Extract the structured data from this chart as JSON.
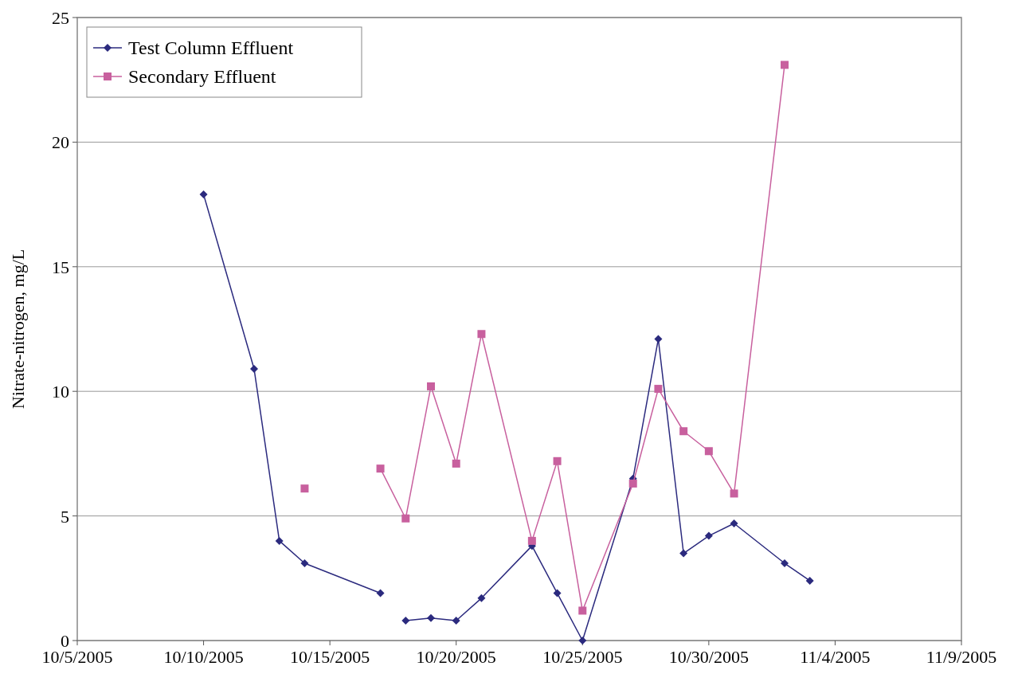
{
  "chart_data": {
    "type": "line",
    "ylabel": "Nitrate-nitrogen, mg/L",
    "xlim": [
      "2005-10-05",
      "2005-11-09"
    ],
    "xticks": [
      {
        "value": "2005-10-05",
        "label": "10/5/2005"
      },
      {
        "value": "2005-10-10",
        "label": "10/10/2005"
      },
      {
        "value": "2005-10-15",
        "label": "10/15/2005"
      },
      {
        "value": "2005-10-20",
        "label": "10/20/2005"
      },
      {
        "value": "2005-10-25",
        "label": "10/25/2005"
      },
      {
        "value": "2005-10-30",
        "label": "10/30/2005"
      },
      {
        "value": "2005-11-04",
        "label": "11/4/2005"
      },
      {
        "value": "2005-11-09",
        "label": "11/9/2005"
      }
    ],
    "ylim": [
      0,
      25
    ],
    "yticks": [
      0,
      5,
      10,
      15,
      20,
      25
    ],
    "grid": "y",
    "legend": "top left",
    "series": [
      {
        "name": "Test Column Effluent",
        "color": "#2b2a7e",
        "marker": "diamond",
        "x": [
          "2005-10-10",
          "2005-10-12",
          "2005-10-13",
          "2005-10-14",
          "2005-10-17",
          "2005-10-17T12:00",
          "2005-10-18",
          "2005-10-19",
          "2005-10-20",
          "2005-10-21",
          "2005-10-23",
          "2005-10-24",
          "2005-10-25",
          "2005-10-27",
          "2005-10-28",
          "2005-10-29",
          "2005-10-30",
          "2005-10-31",
          "2005-11-02",
          "2005-11-03"
        ],
        "values": [
          17.9,
          10.9,
          4.0,
          3.1,
          1.9,
          null,
          0.8,
          0.9,
          0.8,
          1.7,
          3.8,
          1.9,
          0,
          6.5,
          12.1,
          3.5,
          4.2,
          4.7,
          3.1,
          2.4
        ]
      },
      {
        "name": "Secondary Effluent",
        "color": "#c8609e",
        "marker": "square",
        "x": [
          "2005-10-14",
          "2005-10-15",
          "2005-10-17",
          "2005-10-18",
          "2005-10-19",
          "2005-10-20",
          "2005-10-21",
          "2005-10-23",
          "2005-10-24",
          "2005-10-25",
          "2005-10-27",
          "2005-10-28",
          "2005-10-29",
          "2005-10-30",
          "2005-10-31",
          "2005-11-02"
        ],
        "values": [
          6.1,
          null,
          6.9,
          4.9,
          10.2,
          7.1,
          12.3,
          4.0,
          7.2,
          1.2,
          6.3,
          10.1,
          8.4,
          7.6,
          5.9,
          23.1
        ]
      }
    ]
  }
}
